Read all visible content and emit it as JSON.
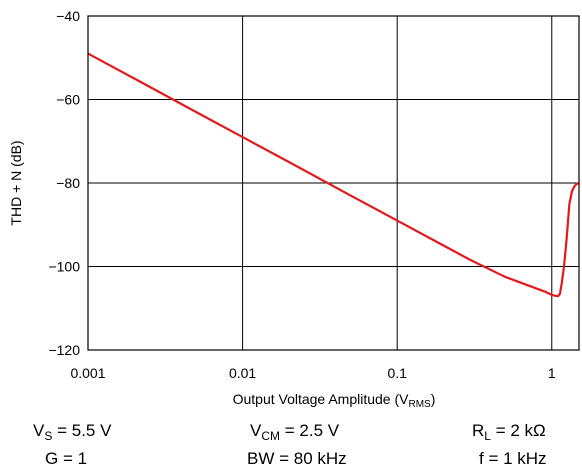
{
  "chart_data": {
    "type": "line",
    "xlabel": "Output Voltage Amplitude (V",
    "xlabel_sub": "RMS",
    "xlabel_end": ")",
    "ylabel": "THD + N (dB)",
    "xscale": "log",
    "xlim": [
      0.001,
      1.5
    ],
    "ylim": [
      -120,
      -40
    ],
    "x_ticks": [
      {
        "value": 0.001,
        "label": "0.001"
      },
      {
        "value": 0.01,
        "label": "0.01"
      },
      {
        "value": 0.1,
        "label": "0.1"
      },
      {
        "value": 1,
        "label": "1"
      }
    ],
    "y_ticks": [
      {
        "value": -40,
        "label": "−40"
      },
      {
        "value": -60,
        "label": "−60"
      },
      {
        "value": -80,
        "label": "−80"
      },
      {
        "value": -100,
        "label": "−100"
      },
      {
        "value": -120,
        "label": "−120"
      }
    ],
    "grid": true,
    "line_color": "#e31a1c",
    "series": [
      {
        "x": [
          0.001,
          0.002,
          0.005,
          0.01,
          0.02,
          0.05,
          0.1,
          0.2,
          0.3,
          0.5,
          0.7,
          0.9,
          1.0,
          1.05,
          1.1,
          1.13,
          1.16,
          1.2,
          1.25,
          1.3,
          1.35,
          1.4,
          1.45,
          1.5
        ],
        "y": [
          -49,
          -55,
          -63,
          -69,
          -75,
          -83,
          -89,
          -95,
          -98.5,
          -102.5,
          -104.5,
          -106,
          -106.8,
          -107,
          -107.1,
          -106.5,
          -104,
          -100,
          -93,
          -85,
          -82,
          -80.8,
          -80.2,
          -80
        ]
      }
    ]
  },
  "conditions": {
    "row1": [
      {
        "main": "V",
        "sub": "S",
        "rest": " = 5.5 V"
      },
      {
        "main": "V",
        "sub": "CM",
        "rest": " = 2.5 V"
      },
      {
        "main": "R",
        "sub": "L",
        "rest": " = 2 kΩ"
      }
    ],
    "row2": [
      {
        "text": "G = 1"
      },
      {
        "text": "BW = 80 kHz"
      },
      {
        "text": "f = 1 kHz"
      }
    ]
  }
}
